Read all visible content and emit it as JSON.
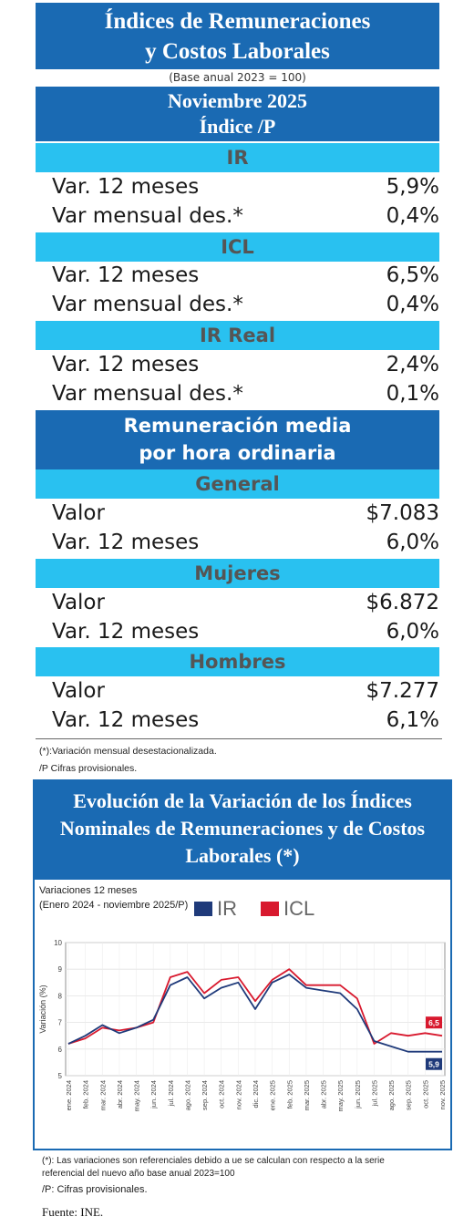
{
  "header": {
    "title_line1": "Índices de Remuneraciones",
    "title_line2": "y Costos Laborales",
    "base_note": "(Base anual 2023 = 100)",
    "period": "Noviembre 2025",
    "subtitle": "Índice /P"
  },
  "sections": [
    {
      "title": "IR",
      "rows": [
        {
          "label": "Var. 12 meses",
          "value": "5,9%"
        },
        {
          "label": "Var mensual des.*",
          "value": "0,4%"
        }
      ]
    },
    {
      "title": "ICL",
      "rows": [
        {
          "label": "Var. 12 meses",
          "value": "6,5%"
        },
        {
          "label": "Var mensual des.*",
          "value": "0,4%"
        }
      ]
    },
    {
      "title": "IR Real",
      "rows": [
        {
          "label": "Var. 12 meses",
          "value": "2,4%"
        },
        {
          "label": "Var mensual des.*",
          "value": "0,1%"
        }
      ]
    }
  ],
  "remuneracion": {
    "title_line1": "Remuneración media",
    "title_line2": "por hora ordinaria",
    "groups": [
      {
        "title": "General",
        "rows": [
          {
            "label": "Valor",
            "value": "$7.083"
          },
          {
            "label": "Var. 12 meses",
            "value": "6,0%"
          }
        ]
      },
      {
        "title": "Mujeres",
        "rows": [
          {
            "label": "Valor",
            "value": "$6.872"
          },
          {
            "label": "Var. 12 meses",
            "value": "6,0%"
          }
        ]
      },
      {
        "title": "Hombres",
        "rows": [
          {
            "label": "Valor",
            "value": "$7.277"
          },
          {
            "label": "Var. 12 meses",
            "value": "6,1%"
          }
        ]
      }
    ]
  },
  "notes": {
    "note1": "(*):Variación mensual desestacionalizada.",
    "note2": "/P Cifras provisionales."
  },
  "chart_panel": {
    "title_line1": "Evolución de la Variación de los Índices",
    "title_line2": "Nominales de Remuneraciones y de Costos",
    "title_line3": "Laborales (*)",
    "subtitle_line1": "Variaciones 12 meses",
    "subtitle_line2": "(Enero 2024 - noviembre 2025/P)"
  },
  "chart_data": {
    "type": "line",
    "ylabel": "Variación (%)",
    "ylim": [
      5,
      10
    ],
    "yticks": [
      "5",
      "6",
      "7",
      "8",
      "9",
      "10"
    ],
    "grid": true,
    "legend_position": "top",
    "x": [
      "ene. 2024",
      "feb. 2024",
      "mar. 2024",
      "abr. 2024",
      "may. 2024",
      "jun. 2024",
      "jul. 2024",
      "ago. 2024",
      "sep. 2024",
      "oct. 2024",
      "nov. 2024",
      "dic. 2024",
      "ene. 2025",
      "feb. 2025",
      "mar. 2025",
      "abr. 2025",
      "may. 2025",
      "jun. 2025",
      "jul. 2025",
      "ago. 2025",
      "sep. 2025",
      "oct. 2025",
      "nov. 2025"
    ],
    "series": [
      {
        "name": "IR",
        "color": "#1f3a7a",
        "values": [
          6.2,
          6.5,
          6.9,
          6.6,
          6.8,
          7.1,
          8.4,
          8.7,
          7.9,
          8.3,
          8.5,
          7.5,
          8.5,
          8.8,
          8.3,
          8.2,
          8.1,
          7.5,
          6.3,
          6.1,
          5.9,
          5.9,
          5.9
        ]
      },
      {
        "name": "ICL",
        "color": "#d8192e",
        "values": [
          6.2,
          6.4,
          6.8,
          6.7,
          6.8,
          7.0,
          8.7,
          8.9,
          8.1,
          8.6,
          8.7,
          7.8,
          8.6,
          9.0,
          8.4,
          8.4,
          8.4,
          7.9,
          6.2,
          6.6,
          6.5,
          6.6,
          6.5
        ]
      }
    ],
    "end_labels": {
      "IR": "5,9",
      "ICL": "6,5"
    }
  },
  "footer": {
    "note1": "(*): Las variaciones son referenciales debido a ue se calculan con respecto a la serie",
    "note1b": "referencial del nuevo año base anual 2023=100",
    "note2": "/P: Cifras provisionales.",
    "source": "Fuente: INE."
  }
}
